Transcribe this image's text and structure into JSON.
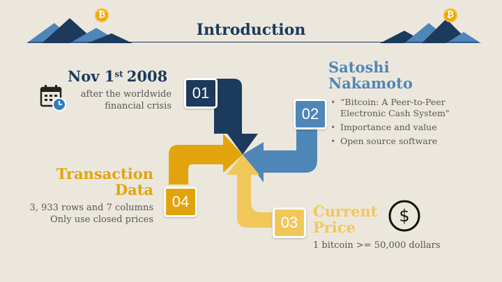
{
  "title": "Introduction",
  "boxes": [
    "01",
    "02",
    "03",
    "04"
  ],
  "coin_symbol": "₿",
  "date": {
    "main": "Nov 1",
    "sup": "st",
    "year": "2008",
    "line1": "after the worldwide",
    "line2": "financial crisis",
    "icon": "calendar-clock-icon"
  },
  "satoshi": {
    "line1": "Satoshi",
    "line2": "Nakamoto",
    "bullets": [
      "“Bitcoin: A Peer-to-Peer Electronic Cash System\"",
      "Importance and value",
      "Open source software"
    ]
  },
  "transaction": {
    "line1": "Transaction",
    "line2": "Data",
    "desc1": "3, 933 rows and 7 columns",
    "desc2": "Only use closed prices"
  },
  "price": {
    "line1": "Current",
    "line2": "Price",
    "desc": "1 bitcoin >= 50,000 dollars",
    "icon": "dollar-circle-icon"
  },
  "colors": {
    "navy": "#1b3a5c",
    "blue": "#4f86b8",
    "gold": "#e2a40d",
    "yellow": "#f2c75a"
  }
}
